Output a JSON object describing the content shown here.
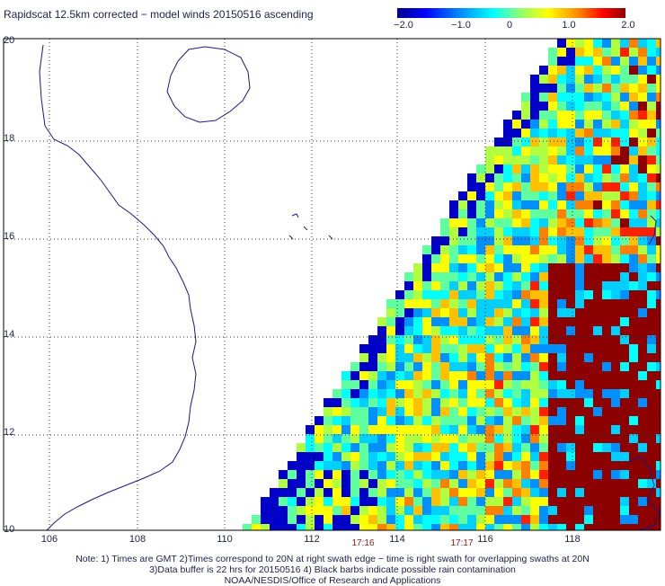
{
  "title": "Rapidscat 12.5km corrected − model winds 20150516 ascending",
  "colorbar": {
    "ticks": [
      "−2.0",
      "−1.0",
      "0",
      "1.0",
      "2.0"
    ],
    "range": [
      -2.0,
      2.0
    ]
  },
  "lat_labels": [
    "20",
    "18",
    "16",
    "14",
    "12",
    "10"
  ],
  "lon_labels": [
    "106",
    "108",
    "110",
    "112",
    "114",
    "116",
    "118"
  ],
  "time_labels": [
    "17:16",
    "17:17"
  ],
  "notes": [
    "Note: 1) Times are GMT 2)Times correspond to 20N at right swath edge − time is right swath for overlapping swaths at 20N",
    "3)Data buffer is 22 hrs for 20150516 4) Black barbs indicate possible rain contamination",
    "NOAA/NESDIS/Office of Research and Applications"
  ],
  "colors": {
    "coast": "#1a1a80",
    "grid": "#333333",
    "frame": "#000000"
  }
}
